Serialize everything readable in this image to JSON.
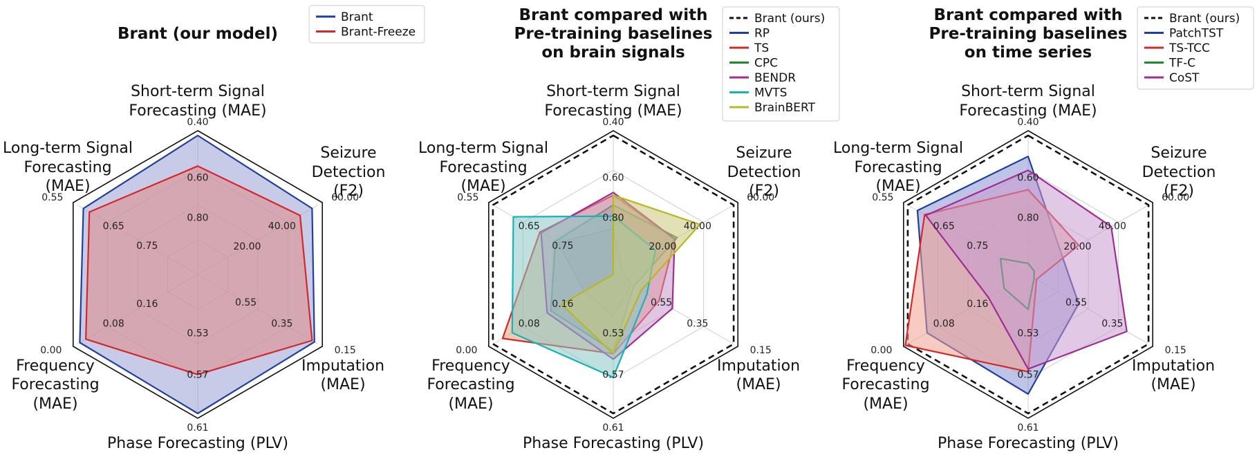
{
  "figure": {
    "axis_labels": [
      "Short-term Signal|Forecasting (MAE)",
      "Seizure|Detection|(F2)",
      "Imputation|(MAE)",
      "Phase Forecasting (PLV)",
      "Frequency|Forecasting|(MAE)",
      "Long-term Signal|Forecasting|(MAE)"
    ],
    "axis_ticks": [
      {
        "outer": "0.40",
        "inner": [
          "0.80",
          "0.60"
        ]
      },
      {
        "outer": "60.00",
        "inner": [
          "20.00",
          "40.00"
        ]
      },
      {
        "outer": "0.15",
        "inner": [
          "0.55",
          "0.35"
        ]
      },
      {
        "outer": "0.61",
        "inner": [
          "0.53",
          "0.57"
        ]
      },
      {
        "outer": "0.00",
        "inner": [
          "0.16",
          "0.08"
        ]
      },
      {
        "outer": "0.55",
        "inner": [
          "0.75",
          "0.65"
        ]
      }
    ],
    "colors": {
      "Brant": "#1f3f9e",
      "Brant-Freeze": "#d62728",
      "Brant (ours)": "#111111",
      "RP": "#1f3f9e",
      "TS": "#d62728",
      "CPC": "#1a8a2e",
      "BENDR": "#a02c96",
      "MVTS": "#17b3b8",
      "BrainBERT": "#b8b820",
      "PatchTST": "#1f3f9e",
      "TS-TCC": "#d62728",
      "TF-C": "#1a8a2e",
      "CoST": "#a02c96"
    }
  },
  "chart_data": [
    {
      "type": "radar",
      "title": "Brant (our model)",
      "axes": [
        "Short-term Signal Forecasting (MAE)",
        "Seizure Detection (F2)",
        "Imputation (MAE)",
        "Phase Forecasting (PLV)",
        "Frequency Forecasting (MAE)",
        "Long-term Signal Forecasting (MAE)"
      ],
      "series": [
        {
          "name": "Brant",
          "values": [
            1.0,
            0.95,
            0.97,
            1.0,
            0.98,
            0.95
          ],
          "fill": true,
          "fill_color": "#9aa0d4"
        },
        {
          "name": "Brant-Freeze",
          "values": [
            0.78,
            0.85,
            0.95,
            0.72,
            0.93,
            0.9
          ],
          "fill": true,
          "fill_color": "#e08a88"
        }
      ],
      "legend": "top-right"
    },
    {
      "type": "radar",
      "title": "Brant compared with|Pre-training baselines|on brain signals",
      "axes": [
        "Short-term Signal Forecasting (MAE)",
        "Seizure Detection (F2)",
        "Imputation (MAE)",
        "Phase Forecasting (PLV)",
        "Frequency Forecasting (MAE)",
        "Long-term Signal Forecasting (MAE)"
      ],
      "series": [
        {
          "name": "Brant (ours)",
          "values": [
            1.0,
            1.0,
            1.0,
            1.0,
            1.0,
            1.0
          ],
          "dashed": true
        },
        {
          "name": "RP",
          "values": [
            0.33,
            0.07,
            0.15,
            0.3,
            0.24,
            0.46
          ],
          "fill": true,
          "fill_color": "#8a92c8"
        },
        {
          "name": "TS",
          "values": [
            0.57,
            0.51,
            0.38,
            0.57,
            0.92,
            0.61
          ],
          "fill": true,
          "fill_color": "#e8a07a"
        },
        {
          "name": "CPC",
          "values": [
            0.5,
            0.53,
            0.17,
            0.55,
            0.52,
            0.48
          ],
          "fill": true,
          "fill_color": "#8aa07a"
        },
        {
          "name": "BENDR",
          "values": [
            0.59,
            0.51,
            0.49,
            0.61,
            0.55,
            0.6
          ],
          "fill": true,
          "fill_color": "#c898c8"
        },
        {
          "name": "MVTS",
          "values": [
            0.42,
            0.35,
            0.28,
            0.74,
            0.84,
            0.83
          ],
          "fill": true,
          "fill_color": "#88c8c4"
        },
        {
          "name": "BrainBERT",
          "values": [
            0.57,
            0.72,
            0.23,
            0.57,
            0.43,
            0.0
          ],
          "fill": true,
          "fill_color": "#c8c878"
        }
      ],
      "legend": "top-right"
    },
    {
      "type": "radar",
      "title": "Brant compared with|Pre-training baselines|on time series",
      "axes": [
        "Short-term Signal Forecasting (MAE)",
        "Seizure Detection (F2)",
        "Imputation (MAE)",
        "Phase Forecasting (PLV)",
        "Frequency Forecasting (MAE)",
        "Long-term Signal Forecasting (MAE)"
      ],
      "series": [
        {
          "name": "Brant (ours)",
          "values": [
            1.0,
            1.0,
            1.0,
            1.0,
            1.0,
            1.0
          ],
          "dashed": true
        },
        {
          "name": "PatchTST",
          "values": [
            0.85,
            0.28,
            0.42,
            0.86,
            0.84,
            0.92
          ],
          "fill": true,
          "fill_color": "#8a92d0"
        },
        {
          "name": "TS-TCC",
          "values": [
            0.61,
            0.42,
            0.07,
            0.7,
            1.02,
            0.86
          ],
          "fill": true,
          "fill_color": "#f0a090"
        },
        {
          "name": "TF-C",
          "values": [
            0.08,
            0.05,
            0.05,
            0.25,
            0.2,
            0.23
          ]
        },
        {
          "name": "CoST",
          "values": [
            0.75,
            0.69,
            0.82,
            0.68,
            0.33,
            0.85
          ],
          "fill": true,
          "fill_color": "#c89ad0"
        }
      ],
      "legend": "top-right"
    }
  ]
}
